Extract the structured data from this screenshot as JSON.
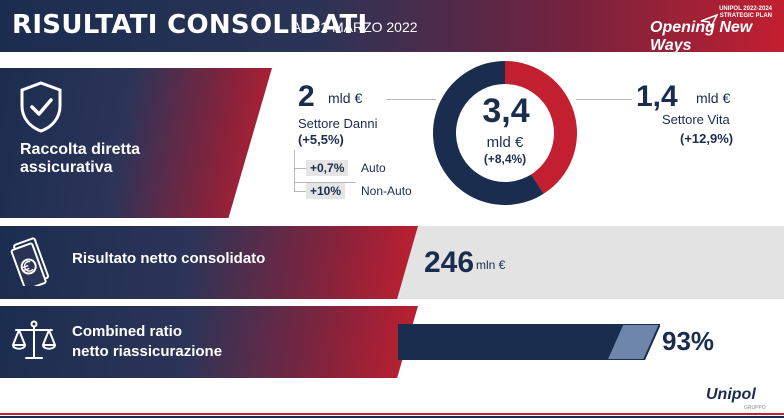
{
  "header": {
    "title": "RISULTATI CONSOLIDATI",
    "subtitle": "AL 31 MARZO 2022",
    "plan_mini": [
      "UNIPOL 2022-2024",
      "STRATEGIC PLAN"
    ],
    "plan_logo": "Opening New Ways"
  },
  "raccolta": {
    "label_line1": "Raccolta diretta",
    "label_line2": "assicurativa",
    "icon": "shield-check-icon",
    "danni": {
      "value": "2",
      "unit": "mld €",
      "label": "Settore Danni",
      "change": "(+5,5%)"
    },
    "auto": {
      "change": "+0,7%",
      "label": "Auto"
    },
    "non_auto": {
      "change": "+10%",
      "label": "Non-Auto"
    },
    "total": {
      "value": "3,4",
      "unit": "mld €",
      "change": "(+8,4%)"
    },
    "vita": {
      "value": "1,4",
      "unit": "mld €",
      "label": "Settore Vita",
      "change": "(+12,9%)"
    },
    "donut": {
      "danni_share": 0.59,
      "vita_share": 0.41,
      "danni_color": "#1b2d4f",
      "vita_color": "#c21f30"
    }
  },
  "risultato": {
    "label": "Risultato netto consolidato",
    "icon": "money-euro-icon",
    "value": "246",
    "unit": "mln €"
  },
  "combined": {
    "label_line1": "Combined ratio",
    "label_line2": "netto riassicurazione",
    "icon": "scale-icon",
    "value": "93%",
    "ratio": 0.93
  },
  "footer": {
    "brand": "Unipol",
    "sub": "GRUPPO"
  },
  "colors": {
    "navy": "#1b2d4f",
    "red": "#c21f30",
    "gray": "#e3e3e3"
  }
}
